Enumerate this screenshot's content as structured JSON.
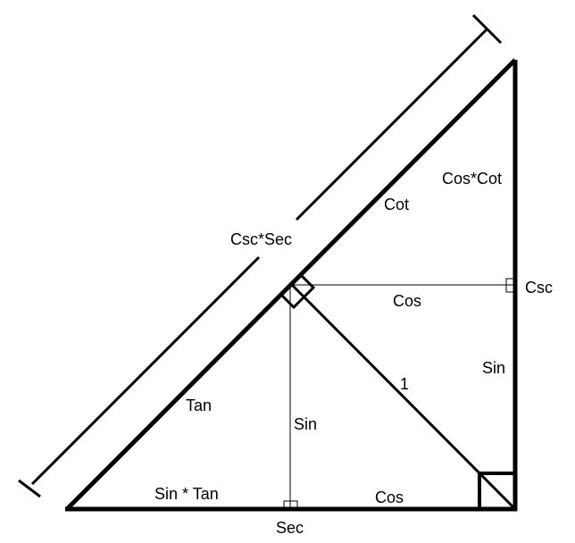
{
  "colors": {
    "stroke": "#000000",
    "background": "#ffffff"
  },
  "labels": {
    "csc_sec": "Csc*Sec",
    "cot": "Cot",
    "cos_cot": "Cos*Cot",
    "csc": "Csc",
    "cos_upper": "Cos",
    "sin_right": "Sin",
    "one": "1",
    "tan": "Tan",
    "sin_altitude": "Sin",
    "sin_tan": "Sin * Tan",
    "cos_lower": "Cos",
    "sec": "Sec"
  }
}
